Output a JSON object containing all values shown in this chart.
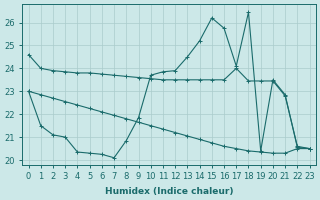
{
  "xlabel": "Humidex (Indice chaleur)",
  "bg_color": "#cce8e8",
  "grid_color": "#aacccc",
  "line_color": "#1a6b6b",
  "line1": [
    24.6,
    24.0,
    23.9,
    23.85,
    23.8,
    23.8,
    23.75,
    23.7,
    23.65,
    23.6,
    23.55,
    23.5,
    23.5,
    23.5,
    23.5,
    23.5,
    23.5,
    24.0,
    23.45,
    23.45,
    23.45,
    22.8,
    20.6,
    20.5
  ],
  "line2": [
    23.0,
    22.85,
    22.7,
    22.55,
    22.4,
    22.25,
    22.1,
    21.95,
    21.8,
    21.65,
    21.5,
    21.35,
    21.2,
    21.05,
    20.9,
    20.75,
    20.6,
    20.5,
    20.4,
    20.35,
    20.3,
    20.3,
    20.5,
    20.5
  ],
  "line3": [
    23.0,
    21.5,
    21.1,
    21.0,
    20.35,
    20.3,
    20.25,
    20.1,
    20.85,
    21.85,
    23.7,
    23.85,
    23.9,
    24.5,
    25.2,
    26.2,
    25.75,
    24.1,
    26.45,
    20.4,
    23.5,
    22.85,
    20.55,
    20.5
  ],
  "ylim": [
    19.8,
    26.8
  ],
  "xlim": [
    -0.5,
    23.5
  ],
  "xticks": [
    0,
    1,
    2,
    3,
    4,
    5,
    6,
    7,
    8,
    9,
    10,
    11,
    12,
    13,
    14,
    15,
    16,
    17,
    18,
    19,
    20,
    21,
    22,
    23
  ],
  "yticks": [
    20,
    21,
    22,
    23,
    24,
    25,
    26
  ]
}
